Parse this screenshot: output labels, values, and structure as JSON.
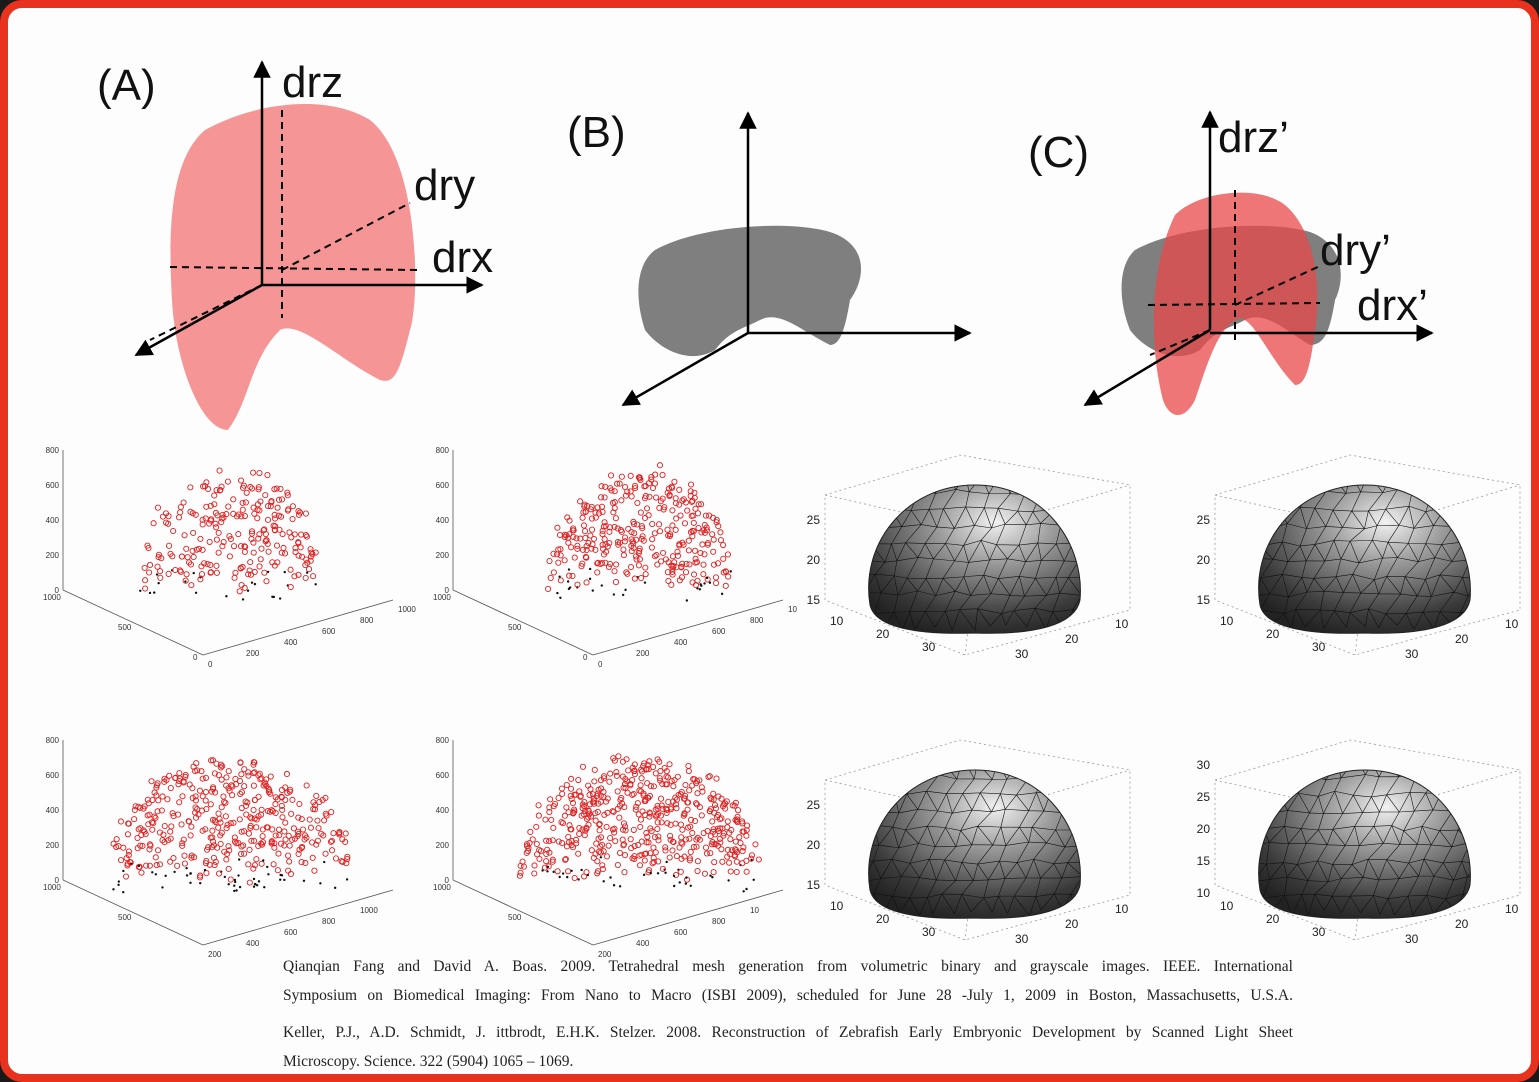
{
  "diagrams": [
    {
      "label": "(A)",
      "axes": [
        "drz",
        "dry",
        "drx"
      ]
    },
    {
      "label": "(B)"
    },
    {
      "label": "(C)",
      "axes": [
        "drz’",
        "dry’",
        "drx’"
      ]
    }
  ],
  "scatter_plots": [
    {
      "z_ticks": [
        800,
        600,
        400,
        200,
        0
      ],
      "left_ticks": [
        1000,
        500,
        0
      ],
      "right_ticks": [
        0,
        200,
        400,
        600,
        800,
        1000
      ]
    },
    {
      "z_ticks": [
        800,
        600,
        400,
        200,
        0
      ],
      "left_ticks": [
        1000,
        500,
        0
      ],
      "right_ticks": [
        0,
        200,
        400,
        600,
        800,
        "10"
      ]
    },
    {
      "z_ticks": [
        800,
        600,
        400,
        200,
        0
      ],
      "left_ticks": [
        1000,
        500
      ],
      "right_ticks": [
        200,
        400,
        600,
        800,
        1000
      ]
    },
    {
      "z_ticks": [
        800,
        600,
        400,
        200,
        0
      ],
      "left_ticks": [
        1000,
        500
      ],
      "right_ticks": [
        200,
        400,
        600,
        800,
        "10"
      ]
    }
  ],
  "mesh_plots": [
    {
      "z_ticks": [
        25,
        20,
        15
      ],
      "left_ticks": [
        10,
        20,
        30
      ],
      "right_ticks": [
        30,
        20,
        10
      ]
    },
    {
      "z_ticks": [
        25,
        20,
        15
      ],
      "left_ticks": [
        10,
        20,
        30
      ],
      "right_ticks": [
        30,
        20,
        10
      ]
    },
    {
      "z_ticks": [
        25,
        20,
        15
      ],
      "left_ticks": [
        10,
        20,
        30
      ],
      "right_ticks": [
        30,
        20,
        10
      ]
    },
    {
      "z_ticks": [
        30,
        25,
        20,
        15,
        10
      ],
      "left_ticks": [
        10,
        20,
        30
      ],
      "right_ticks": [
        30,
        20,
        10
      ]
    }
  ],
  "references": [
    [
      "Qianqian Fang and David A. Boas. 2009. Tetrahedral mesh generation from volumetric binary and grayscale images. IEEE. International",
      "Symposium on Biomedical Imaging: From Nano to Macro (ISBI 2009), scheduled for June 28 -July 1, 2009 in Boston, Massachusetts, U.S.A."
    ],
    [
      "Keller, P.J., A.D. Schmidt, J. ittbrodt, E.H.K. Stelzer. 2008. Reconstruction of Zebrafish Early Embryonic Development by Scanned Light Sheet",
      "Microscopy. Science. 322 (5904) 1065 – 1069."
    ]
  ]
}
